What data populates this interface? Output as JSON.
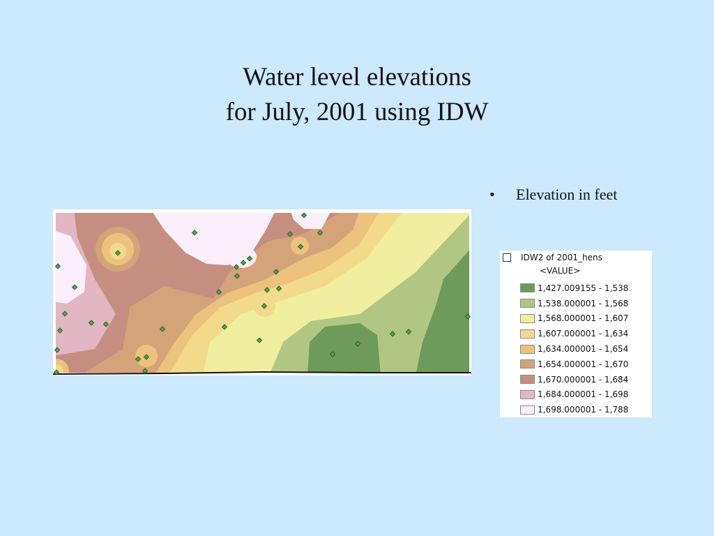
{
  "slide": {
    "title_line1": "Water level elevations",
    "title_line2": "for July, 2001 using IDW",
    "bullet_symbol": "•",
    "bullet_text": "Elevation in feet"
  },
  "legend": {
    "layer_name": "IDW2 of 2001_hens",
    "field_label": "<VALUE>",
    "classes": [
      {
        "label": "1,427.009155 - 1,538",
        "color": "#6e9a5a"
      },
      {
        "label": "1,538.000001 - 1,568",
        "color": "#b2c684"
      },
      {
        "label": "1,568.000001 - 1,607",
        "color": "#f0ef9f"
      },
      {
        "label": "1,607.000001 - 1,634",
        "color": "#f3da8b"
      },
      {
        "label": "1,634.000001 - 1,654",
        "color": "#ecc27d"
      },
      {
        "label": "1,654.000001 - 1,670",
        "color": "#d4a37a"
      },
      {
        "label": "1,670.000001 - 1,684",
        "color": "#c58e80"
      },
      {
        "label": "1,684.000001 - 1,698",
        "color": "#e3b6c3"
      },
      {
        "label": "1,698.000001 - 1,788",
        "color": "#fbeffb"
      }
    ]
  },
  "map": {
    "well_point_color": "#4ea84a"
  }
}
